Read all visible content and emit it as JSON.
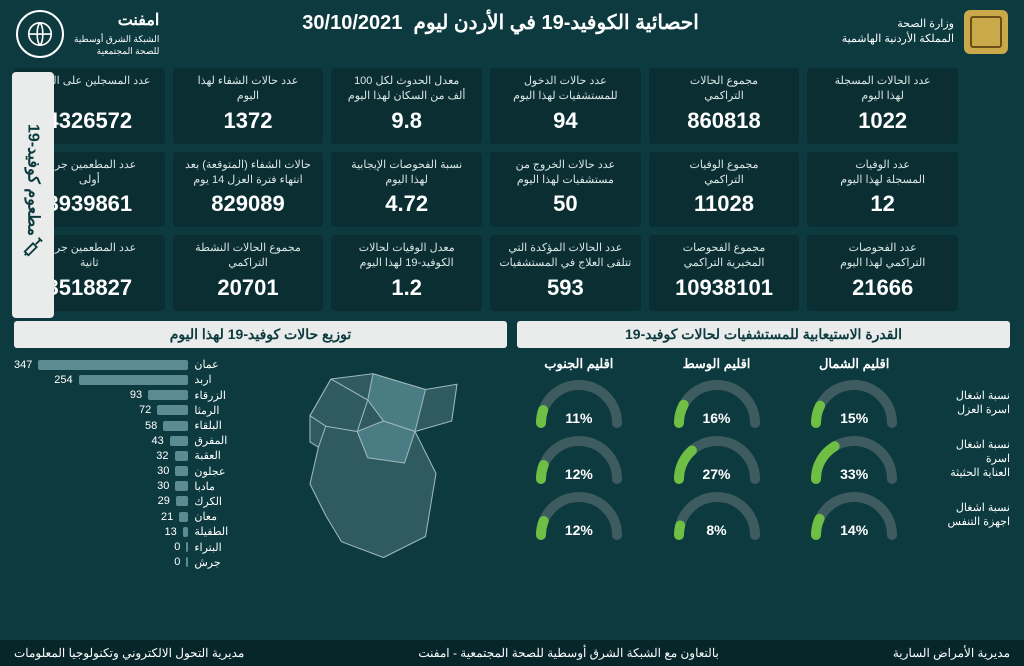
{
  "colors": {
    "bg": "#0d3a3f",
    "card_bg": "#0a2e32",
    "light_panel": "#e9eceb",
    "text": "#ffffff",
    "bar": "#5b8c94",
    "gauge_track": "#3e5c5f",
    "gauge_fill": "#6fbf44",
    "map_fill": "#2f5a60",
    "map_highlight": "#4a7c84",
    "map_stroke": "#9db8bb"
  },
  "header": {
    "ministry_line1": "وزارة الصحة",
    "ministry_line2": "المملكة الأردنية الهاشمية",
    "network_name": "امفنت",
    "network_sub": "الشبكة الشرق أوسطية\nللصحة المجتمعية",
    "title": "احصائية الكوفيد-19 في الأردن ليوم",
    "date": "30/10/2021"
  },
  "stats": [
    {
      "label": "عدد الحالات المسجلة\nلهذا اليوم",
      "value": "1022"
    },
    {
      "label": "مجموع الحالات\nالتراكمي",
      "value": "860818"
    },
    {
      "label": "عدد حالات الدخول\nللمستشفيات لهذا اليوم",
      "value": "94"
    },
    {
      "label": "معدل الحدوث لكل 100\nألف من السكان لهذا اليوم",
      "value": "9.8"
    },
    {
      "label": "عدد حالات الشفاء لهذا\nاليوم",
      "value": "1372"
    },
    {
      "label": "عدد المسجلين على المنصة",
      "value": "4326572"
    },
    {
      "label": "عدد الوفيات\nالمسجلة لهذا اليوم",
      "value": "12"
    },
    {
      "label": "مجموع الوفيات\nالتراكمي",
      "value": "11028"
    },
    {
      "label": "عدد حالات الخروج من\nمستشفيات لهذا اليوم",
      "value": "50"
    },
    {
      "label": "نسبة الفحوصات الإيجابية\nلهذا اليوم",
      "value": "4.72"
    },
    {
      "label": "حالات الشفاء (المتوقعة) بعد\nانتهاء فترة العزل 14 يوم",
      "value": "829089"
    },
    {
      "label": "عدد المطعمين جرعة\nأولى",
      "value": "3939861"
    },
    {
      "label": "عدد الفحوصات\nالتراكمي لهذا اليوم",
      "value": "21666"
    },
    {
      "label": "مجموع الفحوصات\nالمخبرية التراكمي",
      "value": "10938101"
    },
    {
      "label": "عدد الحالات المؤكدة التي\nتتلقى العلاج في المستشفيات",
      "value": "593"
    },
    {
      "label": "معدل الوفيات لحالات\nالكوفيد-19 لهذا اليوم",
      "value": "1.2"
    },
    {
      "label": "مجموع الحالات النشطة\nالتراكمي",
      "value": "20701"
    },
    {
      "label": "عدد المطعمين جرعة\nثانية",
      "value": "3518827"
    }
  ],
  "vax_strip": "مطعوم كوفيد-19",
  "capacity": {
    "title": "القدرة الاستيعابية للمستشفيات لحالات كوفيد-19",
    "regions": [
      "اقليم الشمال",
      "اقليم الوسط",
      "اقليم الجنوب"
    ],
    "rows": [
      {
        "label": "نسبة اشغال\nاسرة العزل",
        "values": [
          15,
          16,
          11
        ]
      },
      {
        "label": "نسبة اشغال اسرة\nالعناية الحثيثة",
        "values": [
          33,
          27,
          12
        ]
      },
      {
        "label": "نسبة اشغال\nاجهزة التنفس",
        "values": [
          14,
          8,
          12
        ]
      }
    ]
  },
  "distribution": {
    "title": "توزيع حالات كوفيد-19 لهذا اليوم",
    "max": 347,
    "rows": [
      {
        "name": "عمان",
        "value": 347
      },
      {
        "name": "اربد",
        "value": 254
      },
      {
        "name": "الزرقاء",
        "value": 93
      },
      {
        "name": "الرمثا",
        "value": 72
      },
      {
        "name": "البلقاء",
        "value": 58
      },
      {
        "name": "المفرق",
        "value": 43
      },
      {
        "name": "العقبة",
        "value": 32
      },
      {
        "name": "عجلون",
        "value": 30
      },
      {
        "name": "مادبا",
        "value": 30
      },
      {
        "name": "الكرك",
        "value": 29
      },
      {
        "name": "معان",
        "value": 21
      },
      {
        "name": "الطفيلة",
        "value": 13
      },
      {
        "name": "البتراء",
        "value": 0
      },
      {
        "name": "جرش",
        "value": 0
      }
    ]
  },
  "footer": {
    "right": "مديرية الأمراض السارية",
    "center": "بالتعاون مع الشبكة الشرق أوسطية للصحة المجتمعية - امفنت",
    "left": "مديرية التحول الالكتروني وتكنولوجيا المعلومات"
  }
}
